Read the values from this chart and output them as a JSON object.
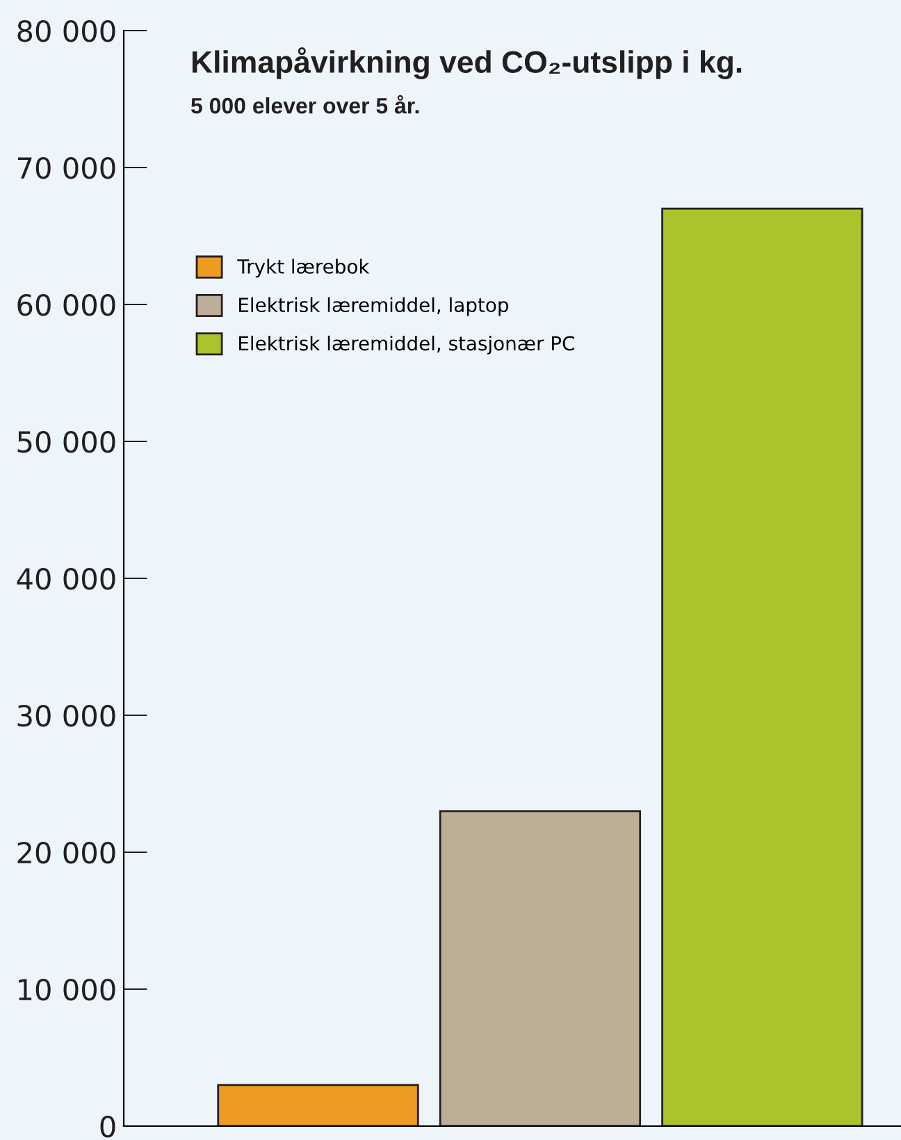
{
  "chart_data": {
    "type": "bar",
    "title": "Klimapåvirkning ved CO₂-utslipp i kg.",
    "subtitle": "5 000 elever over 5 år.",
    "categories": [
      null
    ],
    "series": [
      {
        "name": "Trykt lærebok",
        "color": "#ee9b22",
        "values": [
          3000
        ]
      },
      {
        "name": "Elektrisk læremiddel, laptop",
        "color": "#bdae98",
        "values": [
          23000
        ]
      },
      {
        "name": "Elektrisk læremiddel, stasjonær PC",
        "color": "#abc42c",
        "values": [
          67000
        ]
      }
    ],
    "ylim": [
      0,
      80000
    ],
    "yticks": [
      0,
      {
        "value": 10000,
        "label": "10 000"
      },
      {
        "value": 20000,
        "label": "20 000"
      },
      {
        "value": 30000,
        "label": "30 000"
      },
      {
        "value": 40000,
        "label": "40 000"
      },
      {
        "value": 50000,
        "label": "50 000"
      },
      {
        "value": 60000,
        "label": "60 000"
      },
      {
        "value": 70000,
        "label": "70 000"
      },
      {
        "value": 80000,
        "label": "80 000"
      }
    ],
    "tick_labels": "y",
    "grid": false,
    "legend": "top left"
  }
}
